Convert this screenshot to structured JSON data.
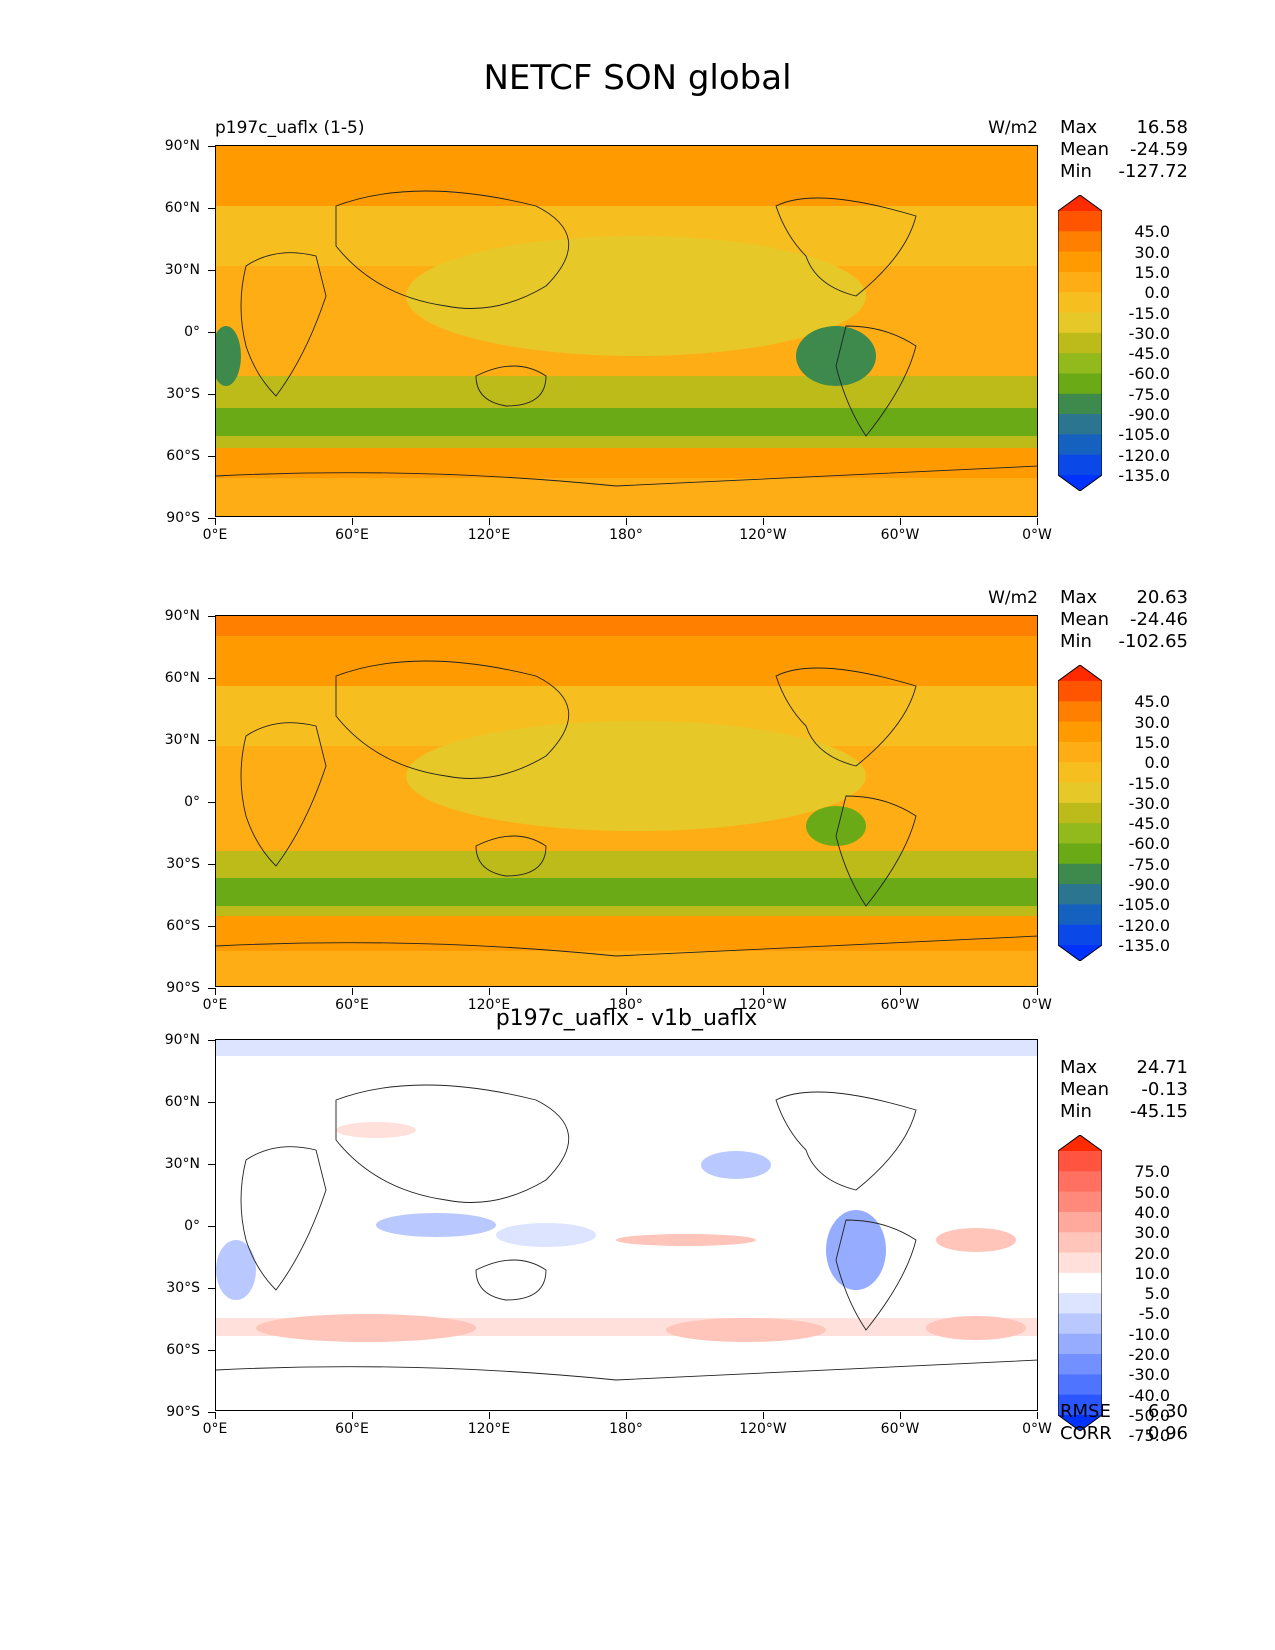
{
  "figure_title": "NETCF SON global",
  "chart_data": [
    {
      "type": "heatmap",
      "panel": "test",
      "title_left": "p197c_uaflx (1-5)",
      "units": "W/m2",
      "stats": {
        "max_label": "Max",
        "max": "16.58",
        "mean_label": "Mean",
        "mean": "-24.59",
        "min_label": "Min",
        "min": "-127.72"
      },
      "colorbar_levels": [
        "45.0",
        "30.0",
        "15.0",
        "0.0",
        "-15.0",
        "-30.0",
        "-45.0",
        "-60.0",
        "-75.0",
        "-90.0",
        "-105.0",
        "-120.0",
        "-135.0"
      ],
      "colors": [
        "#ff2a00",
        "#ff5500",
        "#ff8000",
        "#ff9a00",
        "#ffad14",
        "#f6bf1f",
        "#e6c829",
        "#bdbb1a",
        "#93ba1d",
        "#6aaa16",
        "#3d8a4c",
        "#2b7590",
        "#1561c0",
        "#0a48e8",
        "#0033ff"
      ]
    },
    {
      "type": "heatmap",
      "panel": "reference",
      "title_left": "",
      "units": "W/m2",
      "stats": {
        "max_label": "Max",
        "max": "20.63",
        "mean_label": "Mean",
        "mean": "-24.46",
        "min_label": "Min",
        "min": "-102.65"
      },
      "colorbar_levels": [
        "45.0",
        "30.0",
        "15.0",
        "0.0",
        "-15.0",
        "-30.0",
        "-45.0",
        "-60.0",
        "-75.0",
        "-90.0",
        "-105.0",
        "-120.0",
        "-135.0"
      ],
      "colors": [
        "#ff2a00",
        "#ff5500",
        "#ff8000",
        "#ff9a00",
        "#ffad14",
        "#f6bf1f",
        "#e6c829",
        "#bdbb1a",
        "#93ba1d",
        "#6aaa16",
        "#3d8a4c",
        "#2b7590",
        "#1561c0",
        "#0a48e8",
        "#0033ff"
      ]
    },
    {
      "type": "heatmap",
      "panel": "difference",
      "title_center": "p197c_uaflx - v1b_uaflx",
      "stats": {
        "max_label": "Max",
        "max": "24.71",
        "mean_label": "Mean",
        "mean": "-0.13",
        "min_label": "Min",
        "min": "-45.15"
      },
      "colorbar_levels": [
        "75.0",
        "50.0",
        "40.0",
        "30.0",
        "20.0",
        "10.0",
        "5.0",
        "-5.0",
        "-10.0",
        "-20.0",
        "-30.0",
        "-40.0",
        "-50.0",
        "-75.0"
      ],
      "colors": [
        "#ff2a00",
        "#ff5540",
        "#ff7060",
        "#ff8a7c",
        "#ffa89c",
        "#ffc4ba",
        "#ffe0da",
        "#ffffff",
        "#dce4ff",
        "#b9c8ff",
        "#95acff",
        "#7290ff",
        "#4f74ff",
        "#2a55ff",
        "#0033ff"
      ],
      "footer": {
        "rmse_label": "RMSE",
        "rmse": "6.30",
        "corr_label": "CORR",
        "corr": "0.96"
      }
    }
  ],
  "axes": {
    "y_ticks": [
      "90°N",
      "60°N",
      "30°N",
      "0°",
      "30°S",
      "60°S",
      "90°S"
    ],
    "x_ticks": [
      "0°E",
      "60°E",
      "120°E",
      "180°",
      "120°W",
      "60°W",
      "0°W"
    ]
  }
}
